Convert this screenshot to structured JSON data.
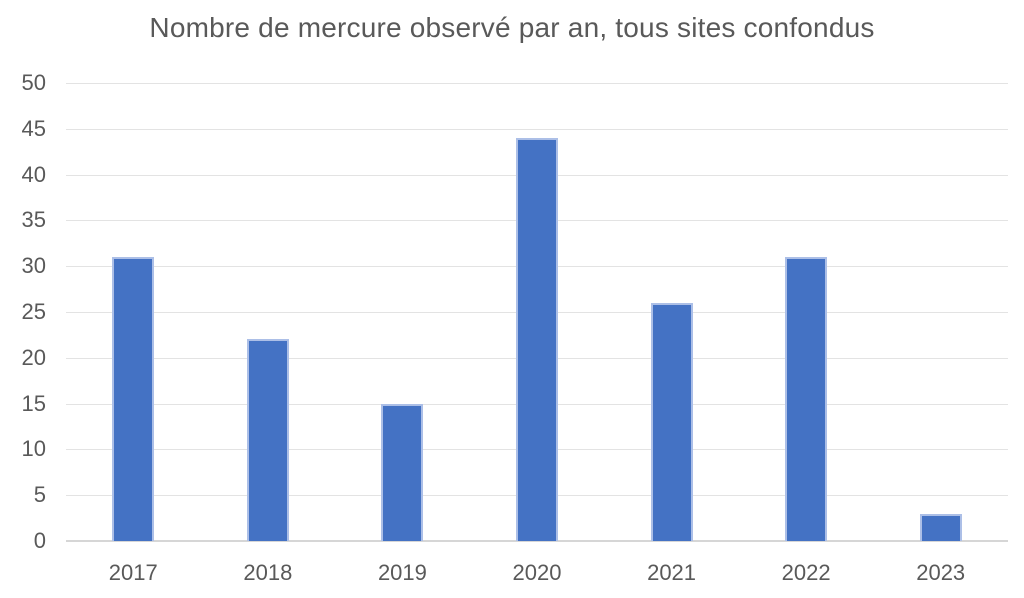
{
  "chart_data": {
    "type": "bar",
    "title": "Nombre de mercure observé par an, tous sites confondus",
    "categories": [
      "2017",
      "2018",
      "2019",
      "2020",
      "2021",
      "2022",
      "2023"
    ],
    "values": [
      31,
      22,
      15,
      44,
      26,
      31,
      3
    ],
    "xlabel": "",
    "ylabel": "",
    "ylim": [
      0,
      50
    ],
    "yticks": [
      0,
      5,
      10,
      15,
      20,
      25,
      30,
      35,
      40,
      45,
      50
    ],
    "grid": true,
    "legend": false,
    "colors": {
      "bar_fill": "#4472C4",
      "bar_border": "#ACBFE7",
      "gridline": "#E3E3E3",
      "axis_line": "#D6D6D6",
      "text": "#595959",
      "background": "#FFFFFF"
    }
  }
}
